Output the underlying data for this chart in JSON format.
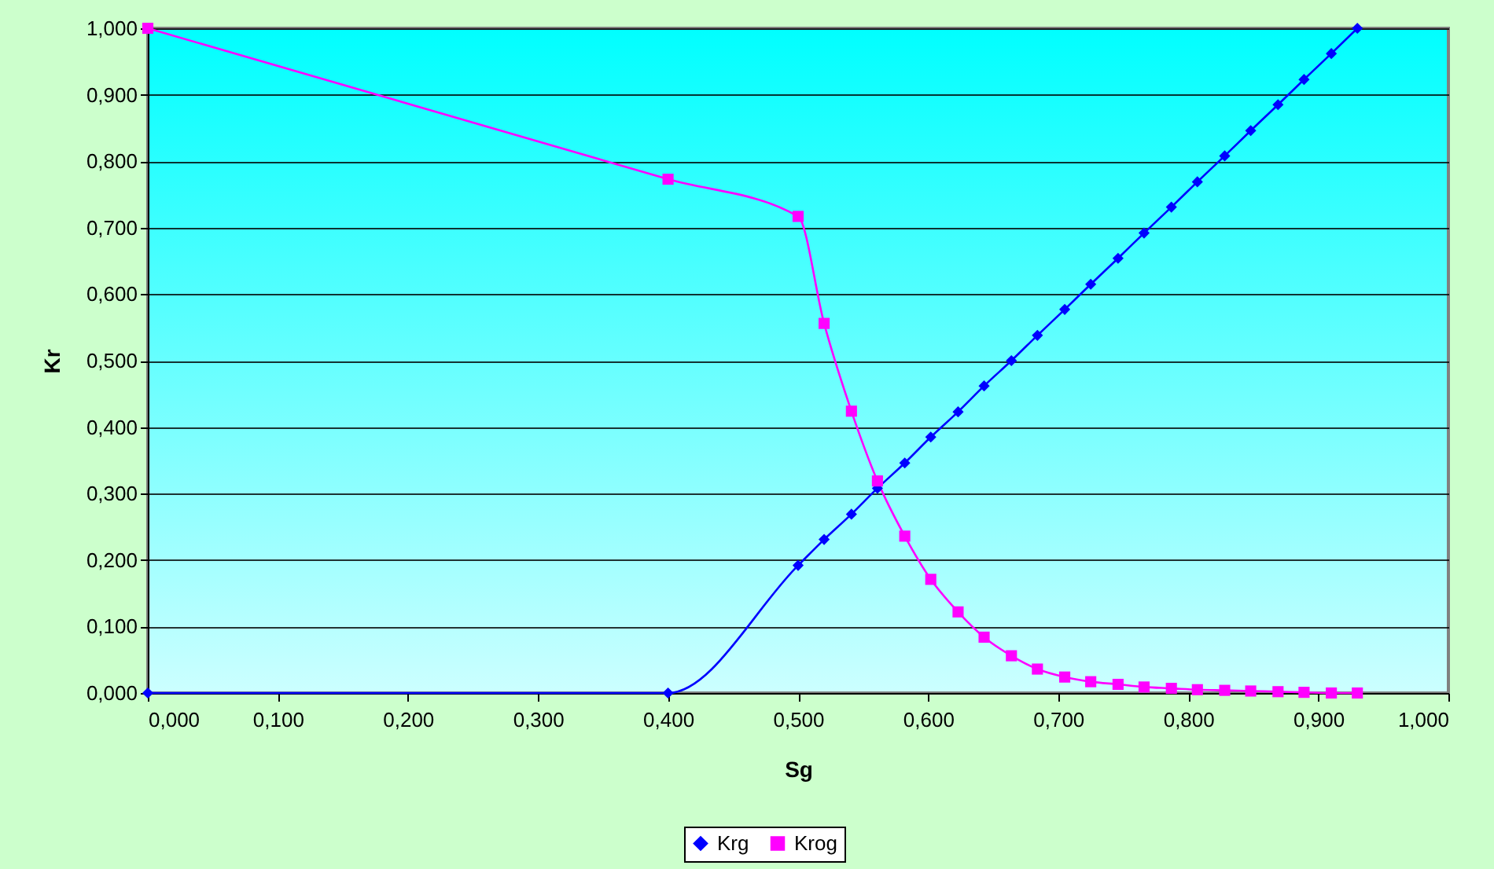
{
  "chart_data": {
    "type": "line",
    "xlabel": "Sg",
    "ylabel": "Kr",
    "x": [
      0,
      0.4,
      0.5,
      0.52,
      0.541,
      0.561,
      0.582,
      0.602,
      0.623,
      0.643,
      0.664,
      0.684,
      0.705,
      0.725,
      0.746,
      0.766,
      0.787,
      0.807,
      0.828,
      0.848,
      0.869,
      0.889,
      0.91,
      0.93
    ],
    "series": [
      {
        "name": "Krg",
        "color": "#0000ff",
        "marker": "diamond",
        "values": [
          0,
          0,
          0.192,
          0.231,
          0.269,
          0.308,
          0.346,
          0.385,
          0.423,
          0.462,
          0.5,
          0.538,
          0.577,
          0.615,
          0.654,
          0.692,
          0.731,
          0.769,
          0.808,
          0.846,
          0.885,
          0.923,
          0.962,
          1.0
        ]
      },
      {
        "name": "Krog",
        "color": "#ff00ff",
        "marker": "square",
        "values": [
          1,
          0.773,
          0.717,
          0.556,
          0.424,
          0.319,
          0.236,
          0.171,
          0.122,
          0.084,
          0.056,
          0.036,
          0.024,
          0.017,
          0.013,
          0.009,
          0.007,
          0.005,
          0.004,
          0.003,
          0.002,
          0.001,
          0,
          0
        ]
      }
    ],
    "xlim": [
      0,
      1
    ],
    "xticks": [
      {
        "value": 0,
        "label": "0,000"
      },
      {
        "value": 0.1,
        "label": "0,100"
      },
      {
        "value": 0.2,
        "label": "0,200"
      },
      {
        "value": 0.3,
        "label": "0,300"
      },
      {
        "value": 0.4,
        "label": "0,400"
      },
      {
        "value": 0.5,
        "label": "0,500"
      },
      {
        "value": 0.6,
        "label": "0,600"
      },
      {
        "value": 0.7,
        "label": "0,700"
      },
      {
        "value": 0.8,
        "label": "0,800"
      },
      {
        "value": 0.9,
        "label": "0,900"
      },
      {
        "value": 1,
        "label": "1,000"
      }
    ],
    "ylim": [
      0,
      1
    ],
    "yticks": [
      {
        "value": 0,
        "label": "0,000"
      },
      {
        "value": 0.1,
        "label": "0,100"
      },
      {
        "value": 0.2,
        "label": "0,200"
      },
      {
        "value": 0.3,
        "label": "0,300"
      },
      {
        "value": 0.4,
        "label": "0,400"
      },
      {
        "value": 0.5,
        "label": "0,500"
      },
      {
        "value": 0.6,
        "label": "0,600"
      },
      {
        "value": 0.7,
        "label": "0,700"
      },
      {
        "value": 0.8,
        "label": "0,800"
      },
      {
        "value": 0.9,
        "label": "0,900"
      },
      {
        "value": 1,
        "label": "1,000"
      }
    ],
    "grid": "y",
    "legend": "bottom",
    "line_style": "solid"
  }
}
